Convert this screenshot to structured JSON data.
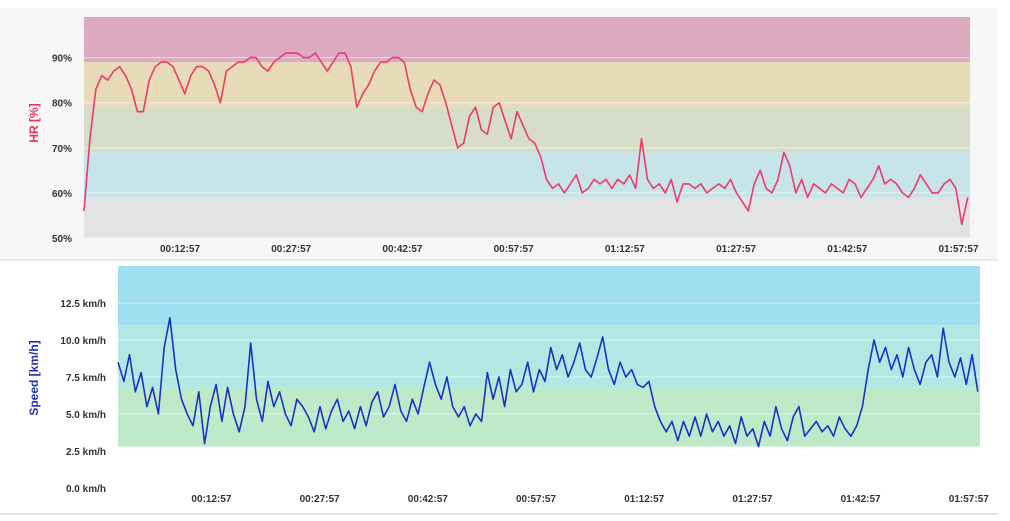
{
  "chart_data": [
    {
      "type": "line",
      "ylabel": "HR [%]",
      "ylim": [
        50,
        99
      ],
      "y_ticks": [
        "50%",
        "60%",
        "70%",
        "80%",
        "90%"
      ],
      "x_ticks": [
        "00:12:57",
        "00:27:57",
        "00:42:57",
        "00:57:57",
        "01:12:57",
        "01:27:57",
        "01:42:57",
        "01:57:57"
      ],
      "x_unit": "minutes",
      "xlim": [
        0,
        119.5
      ],
      "grid": true,
      "colors": {
        "line": "#ee3a6a",
        "label": "#e8345f"
      },
      "zones": [
        {
          "from": 50,
          "to": 59,
          "color": "#e2e3e5"
        },
        {
          "from": 59,
          "to": 69,
          "color": "#c6e4ea"
        },
        {
          "from": 69,
          "to": 79,
          "color": "#d6ddc8"
        },
        {
          "from": 79,
          "to": 89,
          "color": "#e8dbb8"
        },
        {
          "from": 89,
          "to": 99,
          "color": "#ddabc0"
        }
      ],
      "series": [
        {
          "x": [
            0,
            0.8,
            1.6,
            2.4,
            3.2,
            4.0,
            4.8,
            5.6,
            6.4,
            7.2,
            8.0,
            8.8,
            9.6,
            10.4,
            11.2,
            12.0,
            12.8,
            13.6,
            14.4,
            15.2,
            16.0,
            16.8,
            17.6,
            18.4,
            19.2,
            20.0,
            20.8,
            21.6,
            22.4,
            23.2,
            24.0,
            24.8,
            25.6,
            26.4,
            27.2,
            28.0,
            28.8,
            29.6,
            30.4,
            31.2,
            32.0,
            32.8,
            33.6,
            34.4,
            35.2,
            36.0,
            36.8,
            37.6,
            38.4,
            39.2,
            40.0,
            40.8,
            41.6,
            42.4,
            43.2,
            44.0,
            44.8,
            45.6,
            46.4,
            47.2,
            48.0,
            48.8,
            49.6,
            50.4,
            51.2,
            52.0,
            52.8,
            53.6,
            54.4,
            55.2,
            56.0,
            56.8,
            57.6,
            58.4,
            59.2,
            60.0,
            60.8,
            61.6,
            62.4,
            63.2,
            64.0,
            64.8,
            65.6,
            66.4,
            67.2,
            68.0,
            68.8,
            69.6,
            70.4,
            71.2,
            72.0,
            72.8,
            73.6,
            74.4,
            75.2,
            76.0,
            76.8,
            77.6,
            78.4,
            79.2,
            80.0,
            80.8,
            81.6,
            82.4,
            83.2,
            84.0,
            84.8,
            85.6,
            86.4,
            87.2,
            88.0,
            88.8,
            89.6,
            90.4,
            91.2,
            92.0,
            92.8,
            93.6,
            94.4,
            95.2,
            96.0,
            96.8,
            97.6,
            98.4,
            99.2,
            100.0,
            100.8,
            101.6,
            102.4,
            103.2,
            104.0,
            104.8,
            105.6,
            106.4,
            107.2,
            108.0,
            108.8,
            109.6,
            110.4,
            111.2,
            112.0,
            112.8,
            113.6,
            114.4,
            115.2,
            116.0,
            116.8,
            117.6,
            118.4,
            119.2
          ],
          "values": [
            56,
            72,
            83,
            86,
            85,
            87,
            88,
            86,
            83,
            78,
            78,
            85,
            88,
            89,
            89,
            88,
            85,
            82,
            86,
            88,
            88,
            87,
            84,
            80,
            87,
            88,
            89,
            89,
            90,
            90,
            88,
            87,
            89,
            90,
            91,
            91,
            91,
            90,
            90,
            91,
            89,
            87,
            89,
            91,
            91,
            88,
            79,
            82,
            84,
            87,
            89,
            89,
            90,
            90,
            89,
            83,
            79,
            78,
            82,
            85,
            84,
            80,
            75,
            70,
            71,
            77,
            79,
            74,
            73,
            79,
            80,
            76,
            72,
            78,
            75,
            72,
            71,
            68,
            63,
            61,
            62,
            60,
            62,
            64,
            60,
            61,
            63,
            62,
            63,
            61,
            63,
            62,
            64,
            61,
            72,
            63,
            61,
            62,
            60,
            63,
            58,
            62,
            62,
            61,
            62,
            60,
            61,
            62,
            61,
            63,
            60,
            58,
            56,
            62,
            65,
            61,
            60,
            63,
            69,
            66,
            60,
            63,
            59,
            62,
            61,
            60,
            62,
            61,
            60,
            63,
            62,
            59,
            61,
            63,
            66,
            62,
            63,
            62,
            60,
            59,
            61,
            64,
            62,
            60,
            60,
            62,
            63,
            61,
            53,
            59
          ]
        }
      ]
    },
    {
      "type": "line",
      "ylabel": "Speed [km/h]",
      "ylim": [
        0,
        15
      ],
      "y_ticks": [
        "0.0 km/h",
        "2.5 km/h",
        "5.0 km/h",
        "7.5 km/h",
        "10.0 km/h",
        "12.5 km/h"
      ],
      "x_ticks": [
        "00:12:57",
        "00:27:57",
        "00:42:57",
        "00:57:57",
        "01:12:57",
        "01:27:57",
        "01:42:57",
        "01:57:57"
      ],
      "x_unit": "minutes",
      "xlim": [
        0,
        119.5
      ],
      "grid": true,
      "colors": {
        "line": "#1733c8",
        "label": "#2230b8"
      },
      "zones": [
        {
          "from": 2.8,
          "to": 6.8,
          "color": "#bfeac9"
        },
        {
          "from": 6.8,
          "to": 11.0,
          "color": "#b3e7e3"
        },
        {
          "from": 11.0,
          "to": 15,
          "color": "#9fdff0"
        }
      ],
      "series": [
        {
          "x": [
            0,
            0.8,
            1.6,
            2.4,
            3.2,
            4.0,
            4.8,
            5.6,
            6.4,
            7.2,
            8.0,
            8.8,
            9.6,
            10.4,
            11.2,
            12.0,
            12.8,
            13.6,
            14.4,
            15.2,
            16.0,
            16.8,
            17.6,
            18.4,
            19.2,
            20.0,
            20.8,
            21.6,
            22.4,
            23.2,
            24.0,
            24.8,
            25.6,
            26.4,
            27.2,
            28.0,
            28.8,
            29.6,
            30.4,
            31.2,
            32.0,
            32.8,
            33.6,
            34.4,
            35.2,
            36.0,
            36.8,
            37.6,
            38.4,
            39.2,
            40.0,
            40.8,
            41.6,
            42.4,
            43.2,
            44.0,
            44.8,
            45.6,
            46.4,
            47.2,
            48.0,
            48.8,
            49.6,
            50.4,
            51.2,
            52.0,
            52.8,
            53.6,
            54.4,
            55.2,
            56.0,
            56.8,
            57.6,
            58.4,
            59.2,
            60.0,
            60.8,
            61.6,
            62.4,
            63.2,
            64.0,
            64.8,
            65.6,
            66.4,
            67.2,
            68.0,
            68.8,
            69.6,
            70.4,
            71.2,
            72.0,
            72.8,
            73.6,
            74.4,
            75.2,
            76.0,
            76.8,
            77.6,
            78.4,
            79.2,
            80.0,
            80.8,
            81.6,
            82.4,
            83.2,
            84.0,
            84.8,
            85.6,
            86.4,
            87.2,
            88.0,
            88.8,
            89.6,
            90.4,
            91.2,
            92.0,
            92.8,
            93.6,
            94.4,
            95.2,
            96.0,
            96.8,
            97.6,
            98.4,
            99.2,
            100.0,
            100.8,
            101.6,
            102.4,
            103.2,
            104.0,
            104.8,
            105.6,
            106.4,
            107.2,
            108.0,
            108.8,
            109.6,
            110.4,
            111.2,
            112.0,
            112.8,
            113.6,
            114.4,
            115.2,
            116.0,
            116.8,
            117.6,
            118.4,
            119.2
          ],
          "values": [
            8.5,
            7.2,
            9.0,
            6.5,
            7.8,
            5.5,
            6.8,
            5.0,
            9.5,
            11.5,
            8.0,
            6.0,
            5.0,
            4.2,
            6.5,
            3.0,
            5.5,
            7.0,
            4.5,
            6.8,
            5.0,
            3.8,
            5.5,
            9.8,
            6.0,
            4.5,
            7.2,
            5.5,
            6.5,
            5.0,
            4.2,
            6.0,
            5.5,
            4.8,
            3.8,
            5.5,
            4.0,
            5.2,
            6.0,
            4.5,
            5.2,
            4.0,
            5.5,
            4.2,
            5.8,
            6.5,
            4.8,
            5.5,
            7.0,
            5.2,
            4.5,
            6.0,
            5.0,
            6.8,
            8.5,
            7.0,
            6.0,
            7.5,
            5.5,
            4.8,
            5.5,
            4.2,
            5.0,
            4.5,
            7.8,
            6.0,
            7.5,
            5.5,
            8.0,
            6.5,
            7.0,
            8.5,
            6.5,
            8.0,
            7.2,
            9.5,
            8.0,
            9.0,
            7.5,
            8.5,
            9.8,
            8.0,
            7.5,
            8.8,
            10.2,
            8.0,
            7.0,
            8.5,
            7.5,
            8.0,
            7.0,
            6.8,
            7.2,
            5.5,
            4.5,
            3.8,
            4.5,
            3.2,
            4.5,
            3.5,
            4.8,
            3.5,
            5.0,
            3.8,
            4.5,
            3.5,
            4.2,
            3.0,
            4.8,
            3.5,
            4.0,
            2.8,
            4.5,
            3.5,
            5.5,
            4.0,
            3.2,
            4.8,
            5.5,
            3.5,
            4.0,
            4.5,
            3.8,
            4.2,
            3.5,
            4.8,
            4.0,
            3.5,
            4.2,
            5.5,
            8.0,
            10.0,
            8.5,
            9.5,
            8.0,
            9.0,
            7.5,
            9.5,
            8.0,
            7.0,
            8.5,
            9.0,
            7.5,
            10.8,
            8.5,
            7.5,
            8.8,
            7.0,
            9.0,
            6.5
          ]
        }
      ]
    }
  ]
}
